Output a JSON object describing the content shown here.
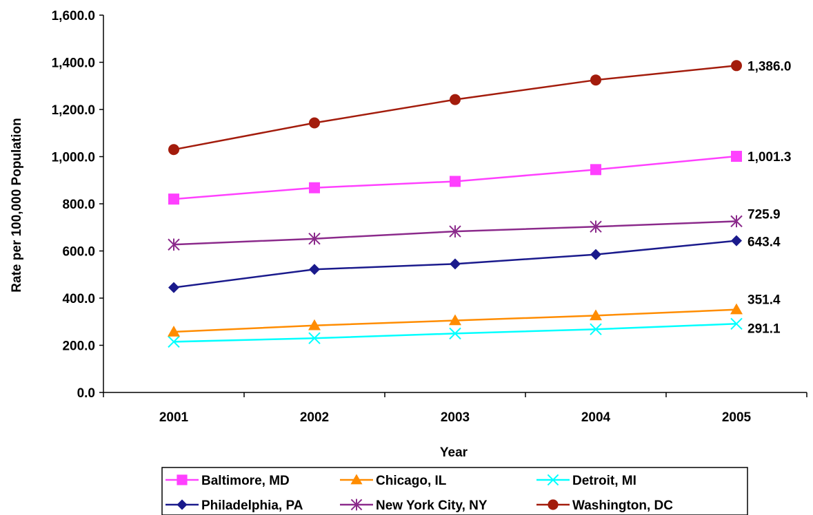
{
  "chart_data": {
    "type": "line",
    "title": "",
    "xlabel": "Year",
    "ylabel": "Rate per 100,000 Population",
    "ylim": [
      0,
      1600
    ],
    "y_ticks": [
      "0.0",
      "200.0",
      "400.0",
      "600.0",
      "800.0",
      "1,000.0",
      "1,200.0",
      "1,400.0",
      "1,600.0"
    ],
    "categories": [
      "2001",
      "2002",
      "2003",
      "2004",
      "2005"
    ],
    "grid": false,
    "legend_position": "bottom",
    "series": [
      {
        "name": "Baltimore, MD",
        "color": "#ff40ff",
        "marker": "square",
        "values": [
          820,
          868,
          895,
          945,
          1001.3
        ],
        "end_label": "1,001.3"
      },
      {
        "name": "Chicago, IL",
        "color": "#ff8c00",
        "marker": "triangle",
        "values": [
          257,
          284,
          305,
          326,
          351.4
        ],
        "end_label": "351.4"
      },
      {
        "name": "Detroit, MI",
        "color": "#00ffff",
        "marker": "x",
        "values": [
          215,
          230,
          250,
          268,
          291.1
        ],
        "end_label": "291.1"
      },
      {
        "name": "Philadelphia, PA",
        "color": "#1a1a8c",
        "marker": "diamond",
        "values": [
          445,
          522,
          545,
          585,
          643.4
        ],
        "end_label": "643.4"
      },
      {
        "name": "New York City, NY",
        "color": "#8b2a8b",
        "marker": "star",
        "values": [
          627,
          652,
          683,
          703,
          725.9
        ],
        "end_label": "725.9"
      },
      {
        "name": "Washington, DC",
        "color": "#a31c0c",
        "marker": "circle",
        "values": [
          1030,
          1143,
          1242,
          1325,
          1386.0
        ],
        "end_label": "1,386.0"
      }
    ]
  }
}
